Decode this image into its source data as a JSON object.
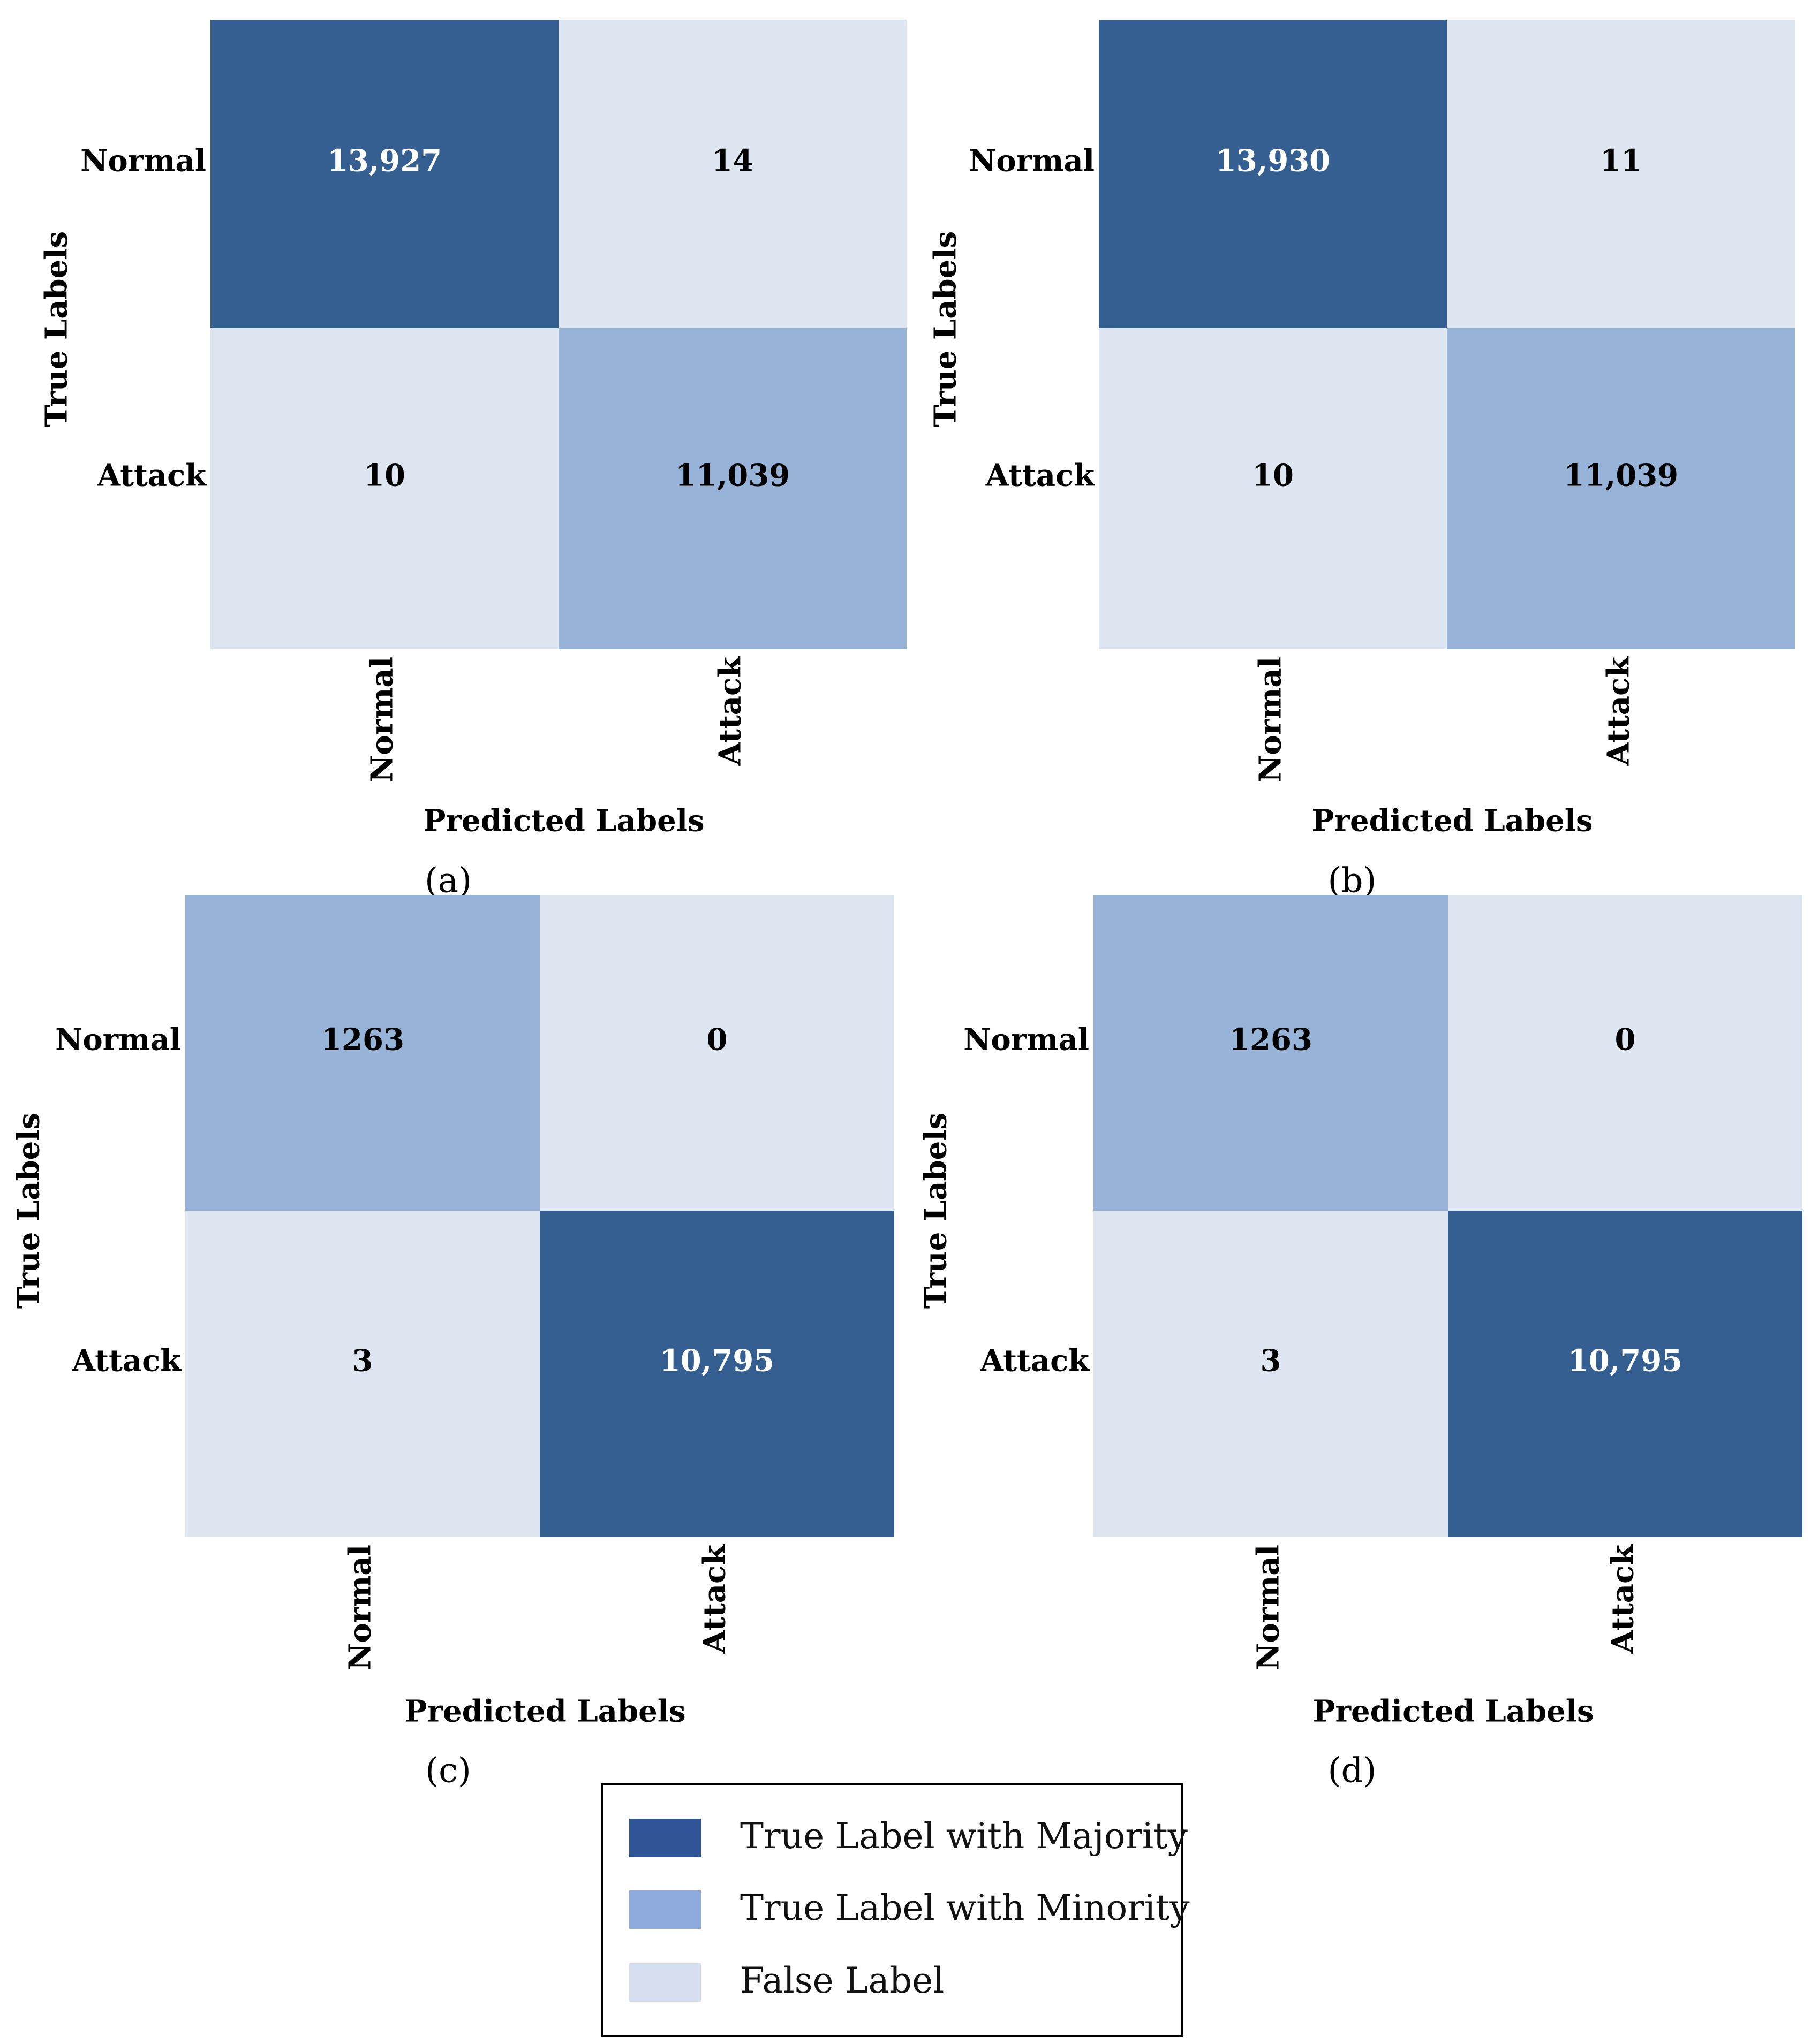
{
  "colors": {
    "majority": "#365f91",
    "minority": "#97b3d7",
    "false": "#dde6f1",
    "legend_majority": "#2f5597",
    "legend_minority": "#8faadc",
    "legend_false": "#d6dfef",
    "text_dark": "#000000",
    "text_light": "#ffffff"
  },
  "chart_data": [
    {
      "type": "heatmap",
      "panel_label": "(a)",
      "row_labels": [
        "Normal",
        "Attack"
      ],
      "col_labels": [
        "Normal",
        "Attack"
      ],
      "xlabel": "Predicted Labels",
      "ylabel": "True Labels",
      "values": [
        [
          13927,
          14
        ],
        [
          10,
          11039
        ]
      ],
      "display": [
        [
          "13,927",
          "14"
        ],
        [
          "10",
          "11,039"
        ]
      ],
      "cell_class": [
        [
          "majority",
          "false"
        ],
        [
          "false",
          "minority"
        ]
      ]
    },
    {
      "type": "heatmap",
      "panel_label": "(b)",
      "row_labels": [
        "Normal",
        "Attack"
      ],
      "col_labels": [
        "Normal",
        "Attack"
      ],
      "xlabel": "Predicted Labels",
      "ylabel": "True Labels",
      "values": [
        [
          13930,
          11
        ],
        [
          10,
          11039
        ]
      ],
      "display": [
        [
          "13,930",
          "11"
        ],
        [
          "10",
          "11,039"
        ]
      ],
      "cell_class": [
        [
          "majority",
          "false"
        ],
        [
          "false",
          "minority"
        ]
      ]
    },
    {
      "type": "heatmap",
      "panel_label": "(c)",
      "row_labels": [
        "Normal",
        "Attack"
      ],
      "col_labels": [
        "Normal",
        "Attack"
      ],
      "xlabel": "Predicted Labels",
      "ylabel": "True Labels",
      "values": [
        [
          1263,
          0
        ],
        [
          3,
          10795
        ]
      ],
      "display": [
        [
          "1263",
          "0"
        ],
        [
          "3",
          "10,795"
        ]
      ],
      "cell_class": [
        [
          "minority",
          "false"
        ],
        [
          "false",
          "majority"
        ]
      ]
    },
    {
      "type": "heatmap",
      "panel_label": "(d)",
      "row_labels": [
        "Normal",
        "Attack"
      ],
      "col_labels": [
        "Normal",
        "Attack"
      ],
      "xlabel": "Predicted Labels",
      "ylabel": "True Labels",
      "values": [
        [
          1263,
          0
        ],
        [
          3,
          10795
        ]
      ],
      "display": [
        [
          "1263",
          "0"
        ],
        [
          "3",
          "10,795"
        ]
      ],
      "cell_class": [
        [
          "minority",
          "false"
        ],
        [
          "false",
          "majority"
        ]
      ]
    }
  ],
  "legend": {
    "items": [
      {
        "label": "True Label with Majority",
        "color_key": "legend_majority"
      },
      {
        "label": "True Label with Minority",
        "color_key": "legend_minority"
      },
      {
        "label": "False Label",
        "color_key": "legend_false"
      }
    ]
  }
}
